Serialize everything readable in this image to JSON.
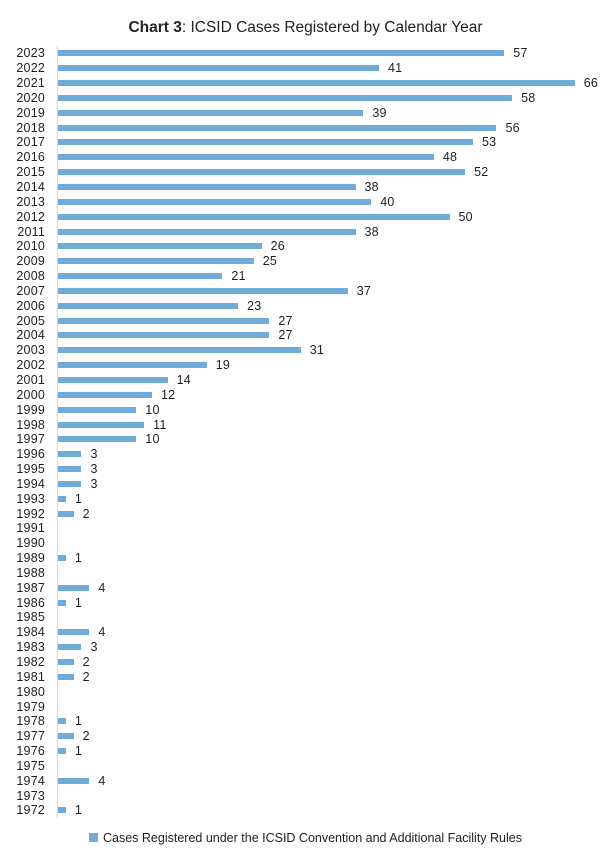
{
  "chart_data": {
    "type": "bar",
    "orientation": "horizontal",
    "title": "Chart 3: ICSID Cases Registered by Calendar Year",
    "title_bold_part": "Chart 3",
    "title_regular_part": ": ICSID Cases Registered by Calendar Year",
    "xlabel": "",
    "ylabel": "",
    "xlim": [
      0,
      66
    ],
    "grid": false,
    "legend_position": "bottom-center",
    "legend": [
      "Cases Registered under the ICSID Convention and Additional Facility Rules"
    ],
    "series_name": "Cases Registered under the ICSID Convention and Additional Facility Rules",
    "value_labels": "shown for non-zero bars, right of bar end",
    "categories": [
      "2023",
      "2022",
      "2021",
      "2020",
      "2019",
      "2018",
      "2017",
      "2016",
      "2015",
      "2014",
      "2013",
      "2012",
      "2011",
      "2010",
      "2009",
      "2008",
      "2007",
      "2006",
      "2005",
      "2004",
      "2003",
      "2002",
      "2001",
      "2000",
      "1999",
      "1998",
      "1997",
      "1996",
      "1995",
      "1994",
      "1993",
      "1992",
      "1991",
      "1990",
      "1989",
      "1988",
      "1987",
      "1986",
      "1985",
      "1984",
      "1983",
      "1982",
      "1981",
      "1980",
      "1979",
      "1978",
      "1977",
      "1976",
      "1975",
      "1974",
      "1973",
      "1972"
    ],
    "values": [
      57,
      41,
      66,
      58,
      39,
      56,
      53,
      48,
      52,
      38,
      40,
      50,
      38,
      26,
      25,
      21,
      37,
      23,
      27,
      27,
      31,
      19,
      14,
      12,
      10,
      11,
      10,
      3,
      3,
      3,
      1,
      2,
      0,
      0,
      1,
      0,
      4,
      1,
      0,
      4,
      3,
      2,
      2,
      0,
      0,
      1,
      2,
      1,
      0,
      4,
      0,
      1
    ],
    "colors": {
      "bar": "#71ABD8",
      "axis_line": "#d9d9d9",
      "text": "#1f1f1f"
    }
  }
}
